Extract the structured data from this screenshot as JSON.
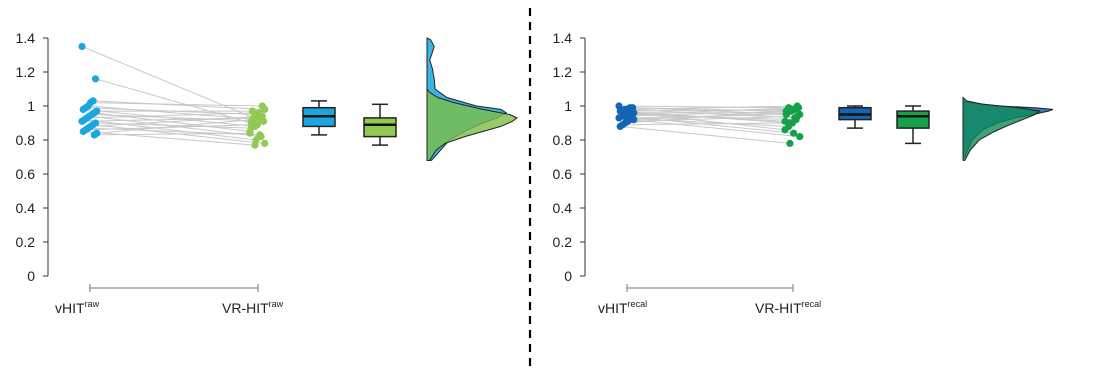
{
  "colors": {
    "vhit_raw": "#1aa7e0",
    "vr_raw": "#92c952",
    "vhit_recal": "#1565b5",
    "vr_recal": "#15a04a",
    "pair_line": "#c8c8c8",
    "axis": "#333333",
    "divider": "#000000"
  },
  "divider": {
    "style": "dashed"
  },
  "chart_data": [
    {
      "type": "raincloud",
      "title": "",
      "ylim": [
        0,
        1.4
      ],
      "yticks": [
        {
          "v": 0,
          "label": "0"
        },
        {
          "v": 0.2,
          "label": "0.2"
        },
        {
          "v": 0.4,
          "label": "0.4"
        },
        {
          "v": 0.6,
          "label": "0.6"
        },
        {
          "v": 0.8,
          "label": "0.8"
        },
        {
          "v": 1,
          "label": "1"
        },
        {
          "v": 1.2,
          "label": "1.2"
        },
        {
          "v": 1.4,
          "label": "1.4"
        }
      ],
      "categories": [
        {
          "base": "vHIT",
          "sup": "raw"
        },
        {
          "base": "VR-HIT",
          "sup": "raw"
        }
      ],
      "grid": false,
      "pairs": [
        [
          1.35,
          0.93
        ],
        [
          1.16,
          0.9
        ],
        [
          1.03,
          0.98
        ],
        [
          1.02,
          1.0
        ],
        [
          1.0,
          0.92
        ],
        [
          0.99,
          0.95
        ],
        [
          0.98,
          0.88
        ],
        [
          0.97,
          0.97
        ],
        [
          0.96,
          0.85
        ],
        [
          0.95,
          0.91
        ],
        [
          0.94,
          0.82
        ],
        [
          0.93,
          0.96
        ],
        [
          0.92,
          0.8
        ],
        [
          0.91,
          0.93
        ],
        [
          0.9,
          0.87
        ],
        [
          0.89,
          0.78
        ],
        [
          0.88,
          0.94
        ],
        [
          0.87,
          0.83
        ],
        [
          0.86,
          0.89
        ],
        [
          0.85,
          0.77
        ],
        [
          0.84,
          0.92
        ],
        [
          0.83,
          0.84
        ]
      ],
      "boxes": [
        {
          "min": 0.83,
          "q1": 0.88,
          "median": 0.94,
          "q3": 0.99,
          "max": 1.03
        },
        {
          "min": 0.77,
          "q1": 0.82,
          "median": 0.89,
          "q3": 0.93,
          "max": 1.01
        }
      ],
      "density": [
        [
          [
            0.68,
            0.05
          ],
          [
            0.8,
            0.25
          ],
          [
            0.86,
            0.45
          ],
          [
            0.9,
            0.62
          ],
          [
            0.93,
            0.78
          ],
          [
            0.96,
            0.88
          ],
          [
            0.98,
            0.82
          ],
          [
            1.0,
            0.55
          ],
          [
            1.05,
            0.22
          ],
          [
            1.1,
            0.09
          ],
          [
            1.16,
            0.08
          ],
          [
            1.22,
            0.06
          ],
          [
            1.27,
            0.03
          ],
          [
            1.3,
            0.05
          ],
          [
            1.35,
            0.08
          ],
          [
            1.39,
            0.04
          ],
          [
            1.4,
            0.0
          ]
        ],
        [
          [
            0.68,
            0.03
          ],
          [
            0.74,
            0.1
          ],
          [
            0.78,
            0.2
          ],
          [
            0.82,
            0.42
          ],
          [
            0.85,
            0.62
          ],
          [
            0.88,
            0.82
          ],
          [
            0.91,
            0.95
          ],
          [
            0.93,
            1.0
          ],
          [
            0.95,
            0.92
          ],
          [
            0.98,
            0.62
          ],
          [
            1.02,
            0.3
          ],
          [
            1.05,
            0.12
          ],
          [
            1.08,
            0.03
          ],
          [
            1.1,
            0.0
          ]
        ]
      ]
    },
    {
      "type": "raincloud",
      "title": "",
      "ylim": [
        0,
        1.4
      ],
      "yticks": [
        {
          "v": 0,
          "label": "0"
        },
        {
          "v": 0.2,
          "label": "0.2"
        },
        {
          "v": 0.4,
          "label": "0.4"
        },
        {
          "v": 0.6,
          "label": "0.6"
        },
        {
          "v": 0.8,
          "label": "0.8"
        },
        {
          "v": 1,
          "label": "1"
        },
        {
          "v": 1.2,
          "label": "1.2"
        },
        {
          "v": 1.4,
          "label": "1.4"
        }
      ],
      "categories": [
        {
          "base": "vHIT",
          "sup": "recal"
        },
        {
          "base": "VR-HIT",
          "sup": "recal"
        }
      ],
      "grid": false,
      "pairs": [
        [
          1.0,
          0.99
        ],
        [
          0.99,
          0.97
        ],
        [
          0.99,
          0.95
        ],
        [
          0.98,
          1.0
        ],
        [
          0.98,
          0.93
        ],
        [
          0.97,
          0.98
        ],
        [
          0.97,
          0.9
        ],
        [
          0.96,
          0.96
        ],
        [
          0.96,
          0.86
        ],
        [
          0.95,
          0.99
        ],
        [
          0.95,
          0.92
        ],
        [
          0.94,
          0.84
        ],
        [
          0.94,
          0.97
        ],
        [
          0.93,
          0.88
        ],
        [
          0.93,
          0.95
        ],
        [
          0.92,
          0.82
        ],
        [
          0.91,
          0.94
        ],
        [
          0.9,
          0.98
        ],
        [
          0.89,
          0.9
        ],
        [
          0.88,
          0.78
        ],
        [
          0.92,
          0.96
        ],
        [
          0.96,
          0.91
        ]
      ],
      "boxes": [
        {
          "min": 0.87,
          "q1": 0.92,
          "median": 0.95,
          "q3": 0.99,
          "max": 1.0
        },
        {
          "min": 0.78,
          "q1": 0.87,
          "median": 0.94,
          "q3": 0.97,
          "max": 1.0
        }
      ],
      "density": [
        [
          [
            0.7,
            0.02
          ],
          [
            0.8,
            0.1
          ],
          [
            0.86,
            0.22
          ],
          [
            0.9,
            0.38
          ],
          [
            0.93,
            0.58
          ],
          [
            0.95,
            0.78
          ],
          [
            0.97,
            0.95
          ],
          [
            0.98,
            1.0
          ],
          [
            0.99,
            0.8
          ],
          [
            1.0,
            0.4
          ],
          [
            1.02,
            0.08
          ],
          [
            1.03,
            0.0
          ]
        ],
        [
          [
            0.68,
            0.02
          ],
          [
            0.74,
            0.08
          ],
          [
            0.8,
            0.18
          ],
          [
            0.85,
            0.35
          ],
          [
            0.89,
            0.52
          ],
          [
            0.92,
            0.66
          ],
          [
            0.95,
            0.8
          ],
          [
            0.97,
            0.85
          ],
          [
            0.99,
            0.62
          ],
          [
            1.01,
            0.22
          ],
          [
            1.03,
            0.04
          ],
          [
            1.05,
            0.0
          ]
        ]
      ]
    }
  ]
}
